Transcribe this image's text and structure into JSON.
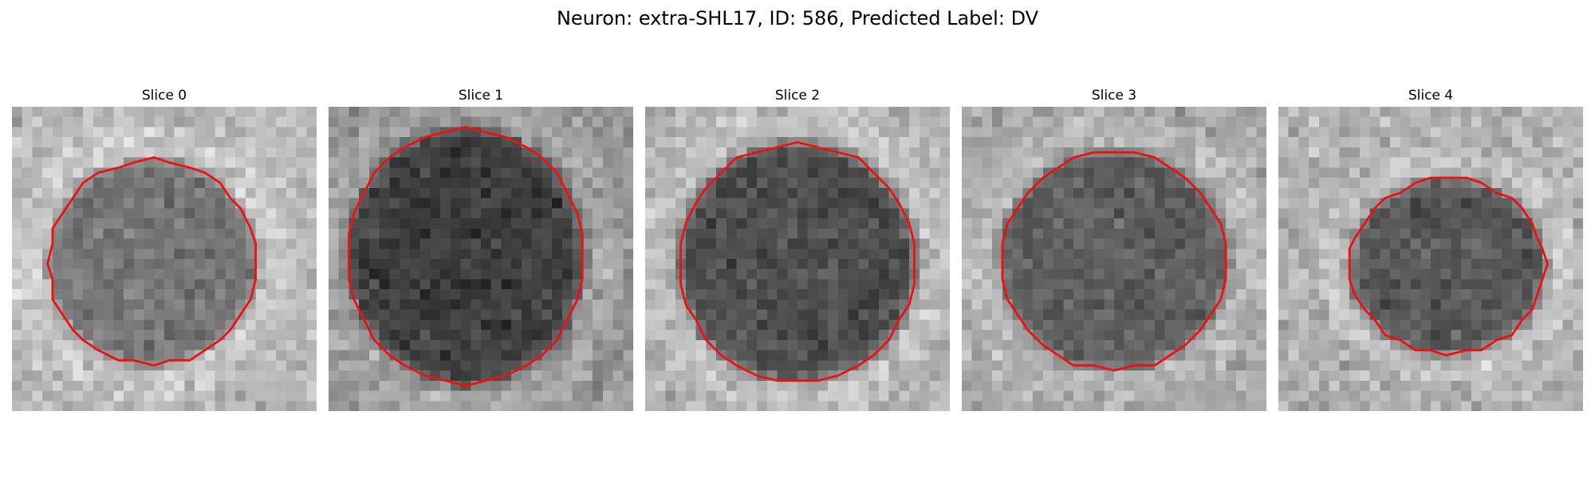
{
  "figure": {
    "title": "Neuron: extra-SHL17, ID: 586, Predicted Label: DV"
  },
  "colors": {
    "outline": "#ee1111",
    "background": "#ffffff"
  },
  "panels": [
    {
      "title": "Slice 0",
      "region": "cell-body",
      "outline_color": "red"
    },
    {
      "title": "Slice 1",
      "region": "cell-body",
      "outline_color": "red"
    },
    {
      "title": "Slice 2",
      "region": "cell-body",
      "outline_color": "red"
    },
    {
      "title": "Slice 3",
      "region": "cell-body",
      "outline_color": "red"
    },
    {
      "title": "Slice 4",
      "region": "cell-body",
      "outline_color": "red"
    }
  ]
}
